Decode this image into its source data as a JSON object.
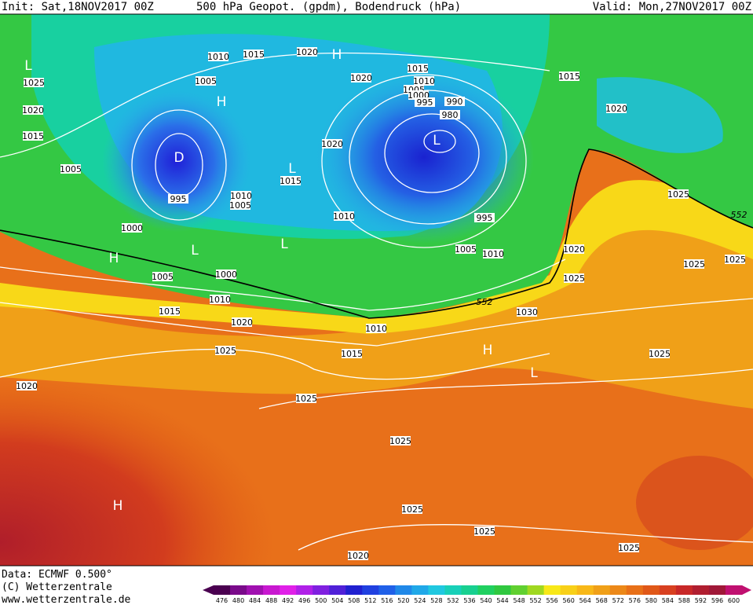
{
  "header": {
    "init": "Init: Sat,18NOV2017 00Z",
    "title": "500 hPa Geopot. (gpdm), Bodendruck (hPa)",
    "valid": "Valid: Mon,27NOV2017 00Z"
  },
  "footer": {
    "data": "Data: ECMWF  0.500°",
    "copyright": "(C) Wetterzentrale",
    "website": "www.wetterzentrale.de"
  },
  "map": {
    "isobar_labels": [
      "1010",
      "1015",
      "1020",
      "1025",
      "1005",
      "1020",
      "1015",
      "1010",
      "1005",
      "1000",
      "995",
      "990",
      "980",
      "1020",
      "1015",
      "1020",
      "1005",
      "1015",
      "995",
      "1010",
      "1005",
      "1010",
      "995",
      "1000",
      "1005",
      "1010",
      "1015",
      "1020",
      "1025",
      "1020",
      "1025",
      "1025",
      "1025",
      "1005",
      "1000",
      "1010",
      "1015",
      "1020",
      "1010",
      "1030",
      "1015",
      "1025",
      "1025",
      "1020",
      "1025",
      "1025",
      "1025",
      "1025",
      "1025",
      "1020",
      "552",
      "552"
    ],
    "pressure_centers": [
      "L",
      "H",
      "H",
      "L",
      "D",
      "L",
      "L",
      "L",
      "H",
      "H",
      "L",
      "H"
    ]
  },
  "legend": {
    "values": [
      476,
      480,
      484,
      488,
      492,
      496,
      500,
      504,
      508,
      512,
      516,
      520,
      524,
      528,
      532,
      536,
      540,
      544,
      548,
      552,
      556,
      560,
      564,
      568,
      572,
      576,
      580,
      584,
      588,
      592,
      596,
      600
    ],
    "colors": [
      "#4a0050",
      "#7a0a8a",
      "#a010b0",
      "#c818d0",
      "#e020e8",
      "#b020e8",
      "#8020e0",
      "#5020d8",
      "#2020d0",
      "#2040e0",
      "#2060e8",
      "#2088e8",
      "#20a8e8",
      "#20c8e0",
      "#18d0b8",
      "#18d090",
      "#20d060",
      "#30c840",
      "#60d030",
      "#a0d820",
      "#f8e818",
      "#f8d018",
      "#f8b818",
      "#f0a018",
      "#ec8818",
      "#e87018",
      "#e05818",
      "#d84020",
      "#c82828",
      "#b01e30",
      "#a01838",
      "#c01070"
    ]
  }
}
